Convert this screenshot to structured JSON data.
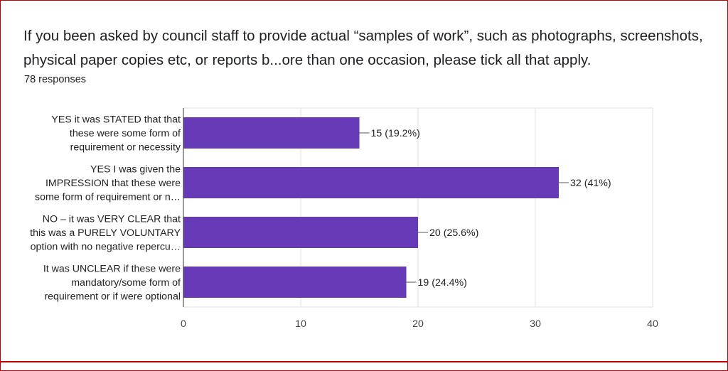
{
  "question": {
    "title": "If you been asked by council staff to provide actual “samples of work”, such as photographs, screenshots, physical paper copies etc, or reports b...ore than one occasion, please tick all that apply.",
    "responses": "78 responses"
  },
  "colors": {
    "bar": "#673ab7",
    "frame": "#c00000",
    "grid": "#e0e0e0"
  },
  "chart_data": {
    "type": "bar",
    "orientation": "horizontal",
    "categories": [
      [
        "YES it was STATED that that",
        "these were some form of",
        "requirement or necessity"
      ],
      [
        "YES I was given the",
        "IMPRESSION that these were",
        "some form of requirement or n…"
      ],
      [
        "NO – it was VERY CLEAR that",
        "this was a PURELY VOLUNTARY",
        "option with no negative repercu…"
      ],
      [
        "It was UNCLEAR if these were",
        "mandatory/some form of",
        "requirement or if were optional"
      ]
    ],
    "values": [
      15,
      32,
      20,
      19
    ],
    "data_labels": [
      "15 (19.2%)",
      "32 (41%)",
      "20 (25.6%)",
      "19 (24.4%)"
    ],
    "xlim": [
      0,
      40
    ],
    "ticks": [
      0,
      10,
      20,
      30,
      40
    ],
    "grid": true
  }
}
